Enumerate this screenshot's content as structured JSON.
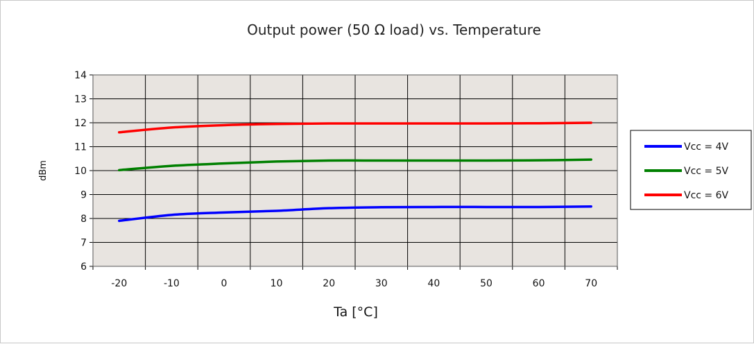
{
  "chart_data": {
    "type": "line",
    "title": "Output power (50 Ω load) vs. Temperature",
    "xlabel": "Ta [°C]",
    "ylabel": "dBm",
    "xlim": [
      -25,
      75
    ],
    "ylim": [
      6,
      14
    ],
    "x_ticks": [
      -20,
      -10,
      0,
      10,
      20,
      30,
      40,
      50,
      60,
      70
    ],
    "y_ticks": [
      6,
      7,
      8,
      9,
      10,
      11,
      12,
      13,
      14
    ],
    "grid": true,
    "legend_position": "right",
    "plot_background": "#e8e4e0",
    "grid_color": "#000000",
    "x": [
      -20,
      -10,
      0,
      10,
      20,
      30,
      40,
      50,
      60,
      70
    ],
    "series": [
      {
        "name": "Vcc = 4V",
        "color": "#0000ff",
        "values": [
          7.9,
          8.15,
          8.25,
          8.32,
          8.43,
          8.47,
          8.48,
          8.48,
          8.48,
          8.5
        ]
      },
      {
        "name": "Vcc = 5V",
        "color": "#008000",
        "values": [
          10.02,
          10.2,
          10.3,
          10.38,
          10.42,
          10.42,
          10.42,
          10.42,
          10.43,
          10.46
        ]
      },
      {
        "name": "Vcc = 6V",
        "color": "#ff0000",
        "values": [
          11.6,
          11.8,
          11.9,
          11.95,
          11.97,
          11.97,
          11.97,
          11.97,
          11.98,
          12.0
        ]
      }
    ]
  }
}
